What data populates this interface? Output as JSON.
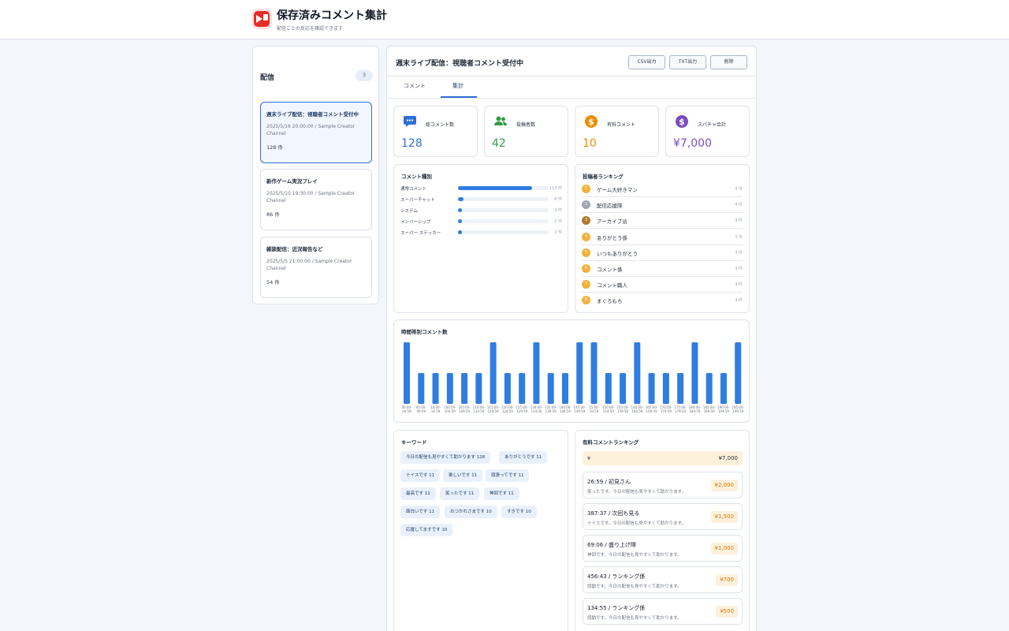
{
  "app": {
    "title": "保存済みコメント集計",
    "subtitle": "配信ごとの反応を確認できます"
  },
  "sidebar": {
    "title": "配信",
    "count": "3",
    "streams": [
      {
        "title": "週末ライブ配信：視聴者コメント受付中",
        "meta": "2025/5/16 20:00:00 / Sample Creator Channel",
        "count": "128 件"
      },
      {
        "title": "新作ゲーム実況プレイ",
        "meta": "2025/5/10 19:30:00 / Sample Creator Channel",
        "count": "86 件"
      },
      {
        "title": "雑談配信：近況報告など",
        "meta": "2025/5/5 21:00:00 / Sample Creator Channel",
        "count": "54 件"
      }
    ]
  },
  "main": {
    "title": "週末ライブ配信：視聴者コメント受付中",
    "buttons": {
      "csv": "CSV出力",
      "txt": "TXT出力",
      "delete": "削除"
    },
    "tabs": [
      {
        "label": "コメント"
      },
      {
        "label": "集計"
      }
    ]
  },
  "stats": [
    {
      "label": "総コメント数",
      "value": "128",
      "color": "#2f6fd6",
      "icon": "chat-bubble-icon"
    },
    {
      "label": "投稿者数",
      "value": "42",
      "color": "#2f9e44",
      "icon": "users-icon"
    },
    {
      "label": "有料コメント",
      "value": "10",
      "color": "#f08c00",
      "icon": "dollar-coin-icon"
    },
    {
      "label": "スパチャ合計",
      "value": "¥7,000",
      "color": "#7b4bc2",
      "icon": "dollar-coin-icon"
    }
  ],
  "comment_types": {
    "title": "コメント種別",
    "items": [
      {
        "label": "通常コメント",
        "count": "113 件",
        "value": 113
      },
      {
        "label": "スーパーチャット",
        "count": "8 件",
        "value": 8
      },
      {
        "label": "システム",
        "count": "3 件",
        "value": 3
      },
      {
        "label": "メンバーシップ",
        "count": "2 件",
        "value": 2
      },
      {
        "label": "スーパー ステッカー",
        "count": "2 件",
        "value": 2
      }
    ]
  },
  "poster_ranking": {
    "title": "投稿者ランキング",
    "items": [
      {
        "rank": "1",
        "name": "ゲーム大好きマン",
        "count": "4 件",
        "color": "#f3b13b"
      },
      {
        "rank": "2",
        "name": "配信応援隊",
        "count": "4 件",
        "color": "#a0a7b1"
      },
      {
        "rank": "3",
        "name": "アーカイブ派",
        "count": "3 件",
        "color": "#b07a32"
      },
      {
        "rank": "4",
        "name": "ありがとう係",
        "count": "3 件",
        "color": "#f3b13b"
      },
      {
        "rank": "5",
        "name": "いつもありがとう",
        "count": "3 件",
        "color": "#f3b13b"
      },
      {
        "rank": "6",
        "name": "コメント係",
        "count": "3 件",
        "color": "#f3b13b"
      },
      {
        "rank": "7",
        "name": "コメント職人",
        "count": "3 件",
        "color": "#f3b13b"
      },
      {
        "rank": "8",
        "name": "まぐろもち",
        "count": "3 件",
        "color": "#f3b13b"
      }
    ]
  },
  "chart_data": {
    "type": "bar",
    "title": "時間帯別コメント数",
    "categories": [
      "00:00-04:59",
      "05:00-09:59",
      "10:00-14:59",
      "100:00-104:59",
      "105:00-109:59",
      "110:00-114:59",
      "115:00-119:59",
      "120:00-124:59",
      "125:00-129:59",
      "130:00-134:59",
      "135:00-139:59",
      "140:00-144:59",
      "145:00-149:59",
      "15:00-19:59",
      "150:00-154:59",
      "155:00-159:59",
      "160:00-164:59",
      "165:00-169:59",
      "170:00-174:59",
      "175:00-179:59",
      "180:00-184:59",
      "185:00-189:59",
      "190:00-194:59",
      "195:00-199:59"
    ],
    "values": [
      8,
      4,
      4,
      4,
      4,
      4,
      8,
      4,
      4,
      8,
      4,
      4,
      8,
      8,
      4,
      4,
      8,
      4,
      4,
      4,
      8,
      4,
      4,
      8
    ],
    "color": "#2f7de1"
  },
  "keywords": {
    "title": "キーワード",
    "items": [
      "今日の配信も見やすくて助かります 128",
      "ありがとうです 11",
      "ナイスです 11",
      "楽しいです 11",
      "頑張ってです 11",
      "最高です 11",
      "笑ったです 11",
      "神回です 11",
      "面白いです 11",
      "おつかれさまです 10",
      "すきです 10",
      "応援してますです 10"
    ]
  },
  "paid_ranking": {
    "title": "有料コメントランキング",
    "total_label": "¥",
    "total_value": "¥7,000",
    "items": [
      {
        "name": "26:59 / 初見さん",
        "text": "笑ったです。今日の配信も見やすくて助かります。",
        "amount": "¥2,000"
      },
      {
        "name": "387:37 / 次回も見る",
        "text": "ナイスです。今日の配信も見やすくて助かります。",
        "amount": "¥1,500"
      },
      {
        "name": "69:06 / 盛り上げ隊",
        "text": "神回です。今日の配信も見やすくて助かります。",
        "amount": "¥1,000"
      },
      {
        "name": "456:43 / ランキング係",
        "text": "感動です。今日の配信も見やすくて助かります。",
        "amount": "¥700"
      },
      {
        "name": "134:55 / ランキング係",
        "text": "感動です。今日の配信も見やすくて助かります。",
        "amount": "¥500"
      }
    ]
  }
}
